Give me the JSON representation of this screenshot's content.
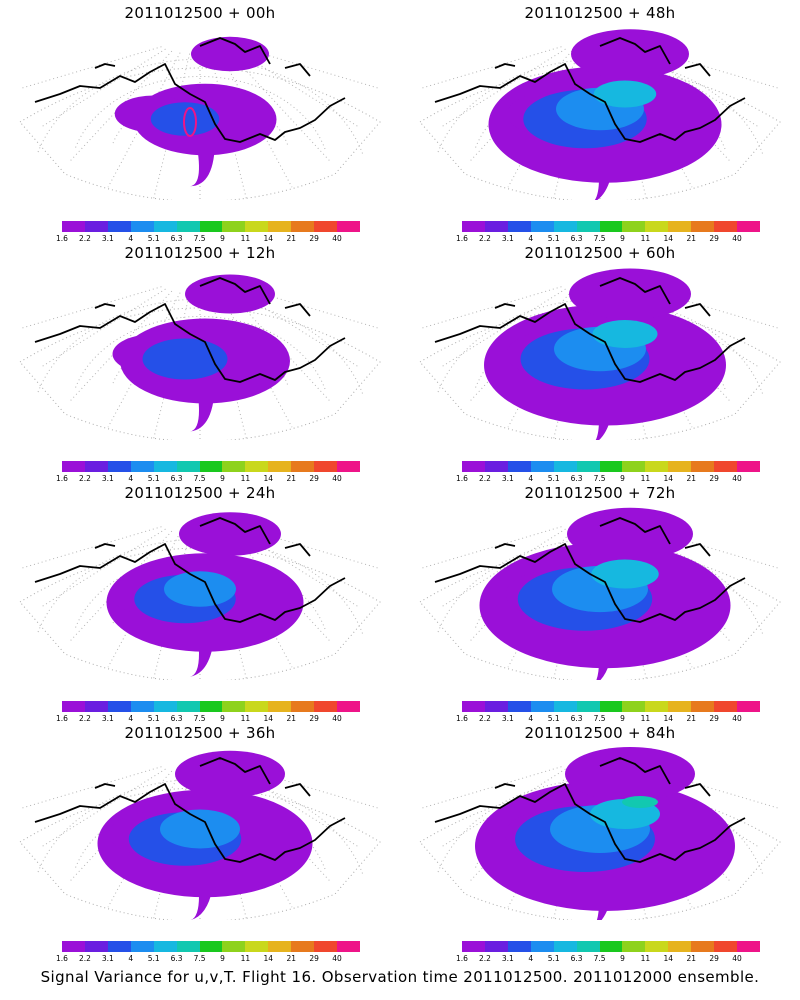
{
  "panels": [
    {
      "title": "2011012500 + 00h",
      "forecast_hour": 0
    },
    {
      "title": "2011012500 + 48h",
      "forecast_hour": 48
    },
    {
      "title": "2011012500 + 12h",
      "forecast_hour": 12
    },
    {
      "title": "2011012500 + 60h",
      "forecast_hour": 60
    },
    {
      "title": "2011012500 + 24h",
      "forecast_hour": 24
    },
    {
      "title": "2011012500 + 72h",
      "forecast_hour": 72
    },
    {
      "title": "2011012500 + 36h",
      "forecast_hour": 36
    },
    {
      "title": "2011012500 + 84h",
      "forecast_hour": 84
    }
  ],
  "colorbar": {
    "ticks": [
      "1.6",
      "2.2",
      "3.1",
      "4",
      "5.1",
      "6.3",
      "7.5",
      "9",
      "11",
      "14",
      "21",
      "29",
      "40"
    ],
    "colors": [
      "#9a10d8",
      "#6a1ee0",
      "#2550e8",
      "#1c8df0",
      "#16b8e0",
      "#12c8b0",
      "#19c81e",
      "#8ed21c",
      "#c9d81c",
      "#e6b31e",
      "#e77a1e",
      "#f0472e",
      "#ee1488"
    ]
  },
  "footer": "Signal Variance for u,v,T. Flight 16. Observation time 2011012500. 2011012000 ensemble."
}
